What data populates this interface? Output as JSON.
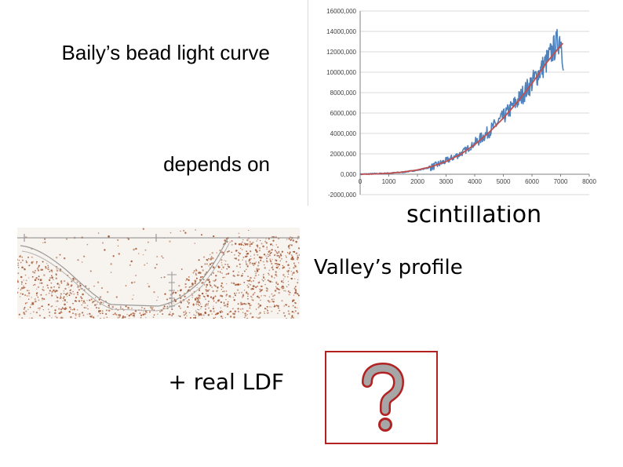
{
  "slide": {
    "title": "Baily’s bead light curve",
    "depends": "depends on",
    "scintillation": "scintillation",
    "valley": "Valley’s profile",
    "ldf": "+ real LDF",
    "question_icon": "question-mark-icon"
  },
  "colors": {
    "series_observed": "#4f81bd",
    "series_fit": "#c0504d",
    "valley_dots": "#a0522d",
    "question_border": "#b22222",
    "question_glyph": "#a6a6a6"
  },
  "chart_data": {
    "type": "line",
    "title": "",
    "xlabel": "",
    "ylabel": "",
    "x_ticks": [
      "0",
      "1000",
      "2000",
      "3000",
      "4000",
      "5000",
      "6000",
      "7000",
      "8000"
    ],
    "y_ticks": [
      "-2000,000",
      "0,000",
      "2000,000",
      "4000,000",
      "6000,000",
      "8000,000",
      "10000,000",
      "12000,000",
      "14000,000",
      "16000,000"
    ],
    "xlim": [
      0,
      8000
    ],
    "ylim": [
      -2000,
      16000
    ],
    "grid": "horizontal",
    "series": [
      {
        "x": [
          0,
          500,
          1000,
          1500,
          2000,
          2500,
          3000,
          3500,
          4000,
          4500,
          5000,
          5500,
          6000,
          6500,
          7000,
          7100
        ],
        "values": [
          0,
          50,
          100,
          200,
          400,
          700,
          1300,
          2000,
          3000,
          4200,
          5600,
          7200,
          9000,
          11000,
          13500,
          11000
        ]
      },
      {
        "x": [
          0,
          500,
          1000,
          1500,
          2000,
          2500,
          3000,
          3500,
          4000,
          4500,
          5000,
          5500,
          6000,
          6500,
          7000,
          7100
        ],
        "values": [
          0,
          30,
          100,
          220,
          420,
          750,
          1250,
          1950,
          2900,
          4100,
          5500,
          7100,
          8900,
          10900,
          12600,
          12900
        ]
      }
    ]
  }
}
